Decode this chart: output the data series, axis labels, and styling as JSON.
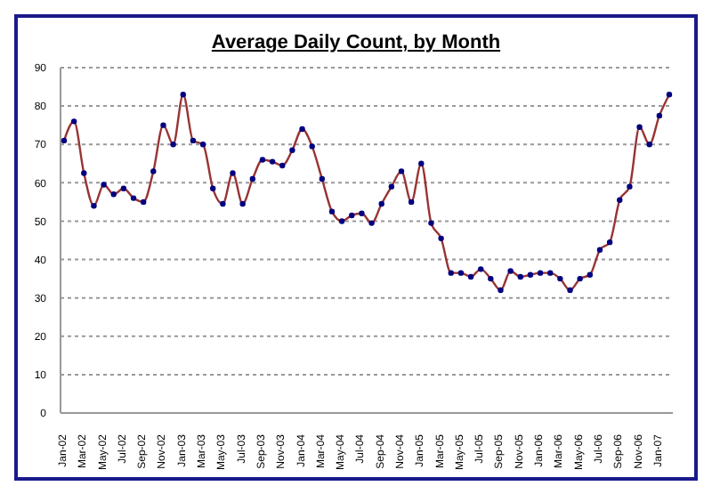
{
  "chart_data": {
    "type": "line",
    "title": "Average Daily Count, by Month",
    "categories": [
      "Jan-02",
      null,
      "Mar-02",
      null,
      "May-02",
      null,
      "Jul-02",
      null,
      "Sep-02",
      null,
      "Nov-02",
      null,
      "Jan-03",
      null,
      "Mar-03",
      null,
      "May-03",
      null,
      "Jul-03",
      null,
      "Sep-03",
      null,
      "Nov-03",
      null,
      "Jan-04",
      null,
      "Mar-04",
      null,
      "May-04",
      null,
      "Jul-04",
      null,
      "Sep-04",
      null,
      "Nov-04",
      null,
      "Jan-05",
      null,
      "Mar-05",
      null,
      "May-05",
      null,
      "Jul-05",
      null,
      "Sep-05",
      null,
      "Nov-05",
      null,
      "Jan-06",
      null,
      "Mar-06",
      null,
      "May-06",
      null,
      "Jul-06",
      null,
      "Sep-06",
      null,
      "Nov-06",
      null,
      "Jan-07",
      null
    ],
    "series": [
      {
        "color": "#993333",
        "values": [
          71,
          76,
          62.5,
          54,
          59.5,
          57,
          58.5,
          56,
          55,
          63,
          75,
          70,
          83,
          71,
          70,
          58.5,
          54.5,
          62.5,
          54.5,
          61,
          66,
          65.5,
          64.5,
          68.5,
          74,
          69.5,
          61,
          52.5,
          50,
          51.5,
          52,
          49.5,
          54.5,
          59,
          63,
          55,
          65,
          49.5,
          45.5,
          36.5,
          36.5,
          35.5,
          37.5,
          35,
          32,
          37,
          35.5,
          36,
          36.5,
          36.5,
          35,
          32,
          35,
          36,
          42.5,
          44.5,
          55.5,
          59,
          74.5,
          70,
          77.5,
          83
        ]
      }
    ],
    "ylim": [
      0,
      90
    ],
    "yticks": [
      0,
      10,
      20,
      30,
      40,
      50,
      60,
      70,
      80,
      90
    ],
    "grid": "y",
    "marker": "circle",
    "line_style": "solid"
  }
}
